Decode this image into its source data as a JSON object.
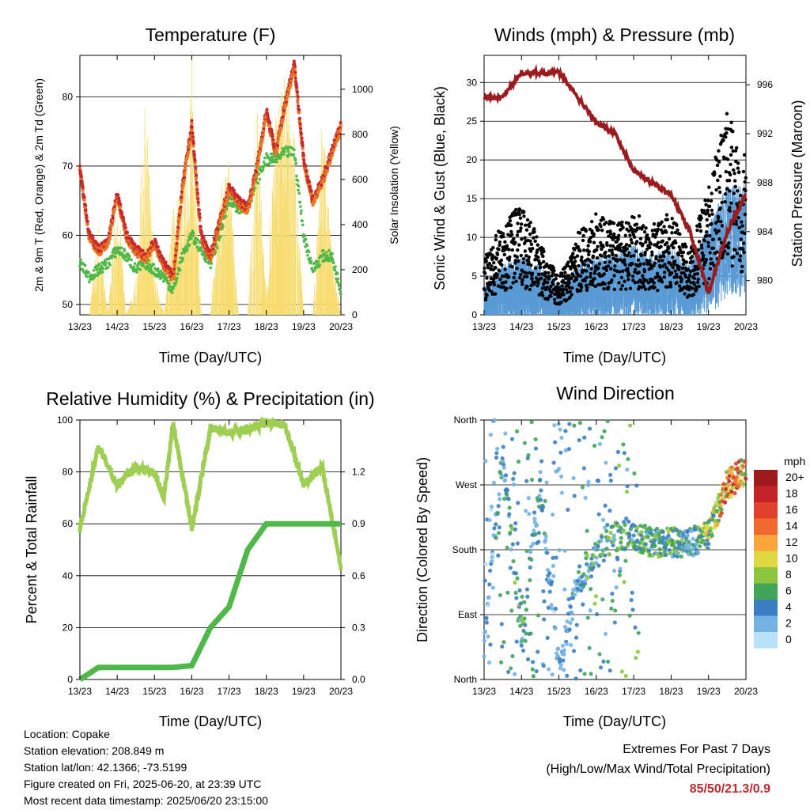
{
  "xtick_labels": [
    "13/23",
    "14/23",
    "15/23",
    "16/23",
    "17/23",
    "18/23",
    "19/23",
    "20/23"
  ],
  "xlabel": "Time (Day/UTC)",
  "panels": {
    "temperature": {
      "title": "Temperature (F)",
      "ylabel_left": "2m & 9m T (Red, Orange) & 2m Td (Green)",
      "ylabel_right": "Solar Insolation (Yellow)",
      "left_ticks": [
        "50",
        "60",
        "70",
        "80"
      ],
      "right_ticks": [
        "0",
        "200",
        "400",
        "600",
        "800",
        "1000"
      ]
    },
    "winds": {
      "title": "Winds (mph) & Pressure (mb)",
      "ylabel_left": "Sonic Wind & Gust (Blue, Black)",
      "ylabel_right": "Station Pressure (Maroon)",
      "left_ticks": [
        "0",
        "5",
        "10",
        "15",
        "20",
        "25",
        "30"
      ],
      "right_ticks": [
        "980",
        "984",
        "988",
        "992",
        "996"
      ]
    },
    "humidity": {
      "title": "Relative Humidity (%) & Precipitation (in)",
      "ylabel_left": "Percent & Total Rainfall",
      "left_ticks": [
        "0",
        "20",
        "40",
        "60",
        "80",
        "100"
      ],
      "right_ticks": [
        "0.0",
        "0.3",
        "0.6",
        "0.9",
        "1.2"
      ]
    },
    "direction": {
      "title": "Wind Direction",
      "ylabel_left": "Direction (Colored By Speed)",
      "left_ticks": [
        "North",
        "East",
        "South",
        "West",
        "North"
      ],
      "legend_title": "mph",
      "legend_labels": [
        "20+",
        "18",
        "16",
        "14",
        "12",
        "10",
        "8",
        "6",
        "4",
        "2",
        "0"
      ],
      "legend_colors": [
        "#9e1a1d",
        "#c42427",
        "#e0402c",
        "#f06a2f",
        "#f9a73b",
        "#e0d840",
        "#8cc63f",
        "#41a55a",
        "#3b7fc2",
        "#74b2e3",
        "#b9e1f8"
      ]
    }
  },
  "info": {
    "location": "Location: Copake",
    "elevation": "Station elevation: 208.849 m",
    "latlon": "Station lat/lon: 42.1366; -73.5199",
    "created": "Figure created on Fri, 2025-06-20, at 23:39 UTC",
    "recent": "Most recent data timestamp: 2025/06/20 23:15:00"
  },
  "extremes": {
    "line1": "Extremes For Past 7 Days",
    "line2": "(High/Low/Max Wind/Total Precipitation)",
    "values": "85/50/21.3/0.9"
  },
  "colors": {
    "temp2m": "#c8282d",
    "temp9m": "#e87a24",
    "dewpoint": "#4fb848",
    "solar": "#f7dc6f",
    "gust": "#000000",
    "wind": "#5a9bd5",
    "pressure": "#9b1c1f",
    "rh": "#9fcf52",
    "rain": "#4fb848"
  },
  "chart_data": [
    {
      "type": "line",
      "title": "Temperature (F)",
      "x": [
        0,
        0.25,
        0.5,
        0.75,
        1,
        1.25,
        1.5,
        1.75,
        2,
        2.25,
        2.5,
        2.75,
        3,
        3.25,
        3.5,
        3.75,
        4,
        4.25,
        4.5,
        4.75,
        5,
        5.25,
        5.5,
        5.75,
        6,
        6.25,
        6.5,
        6.75,
        7
      ],
      "series": [
        {
          "values": [
            70,
            60,
            58,
            59,
            66,
            60,
            58,
            57,
            59,
            56,
            54,
            67,
            76,
            60,
            57,
            62,
            67,
            65,
            64,
            70,
            78,
            72,
            79,
            85,
            71,
            65,
            68,
            72,
            76
          ]
        },
        {
          "values": [
            56,
            54,
            55,
            56,
            58,
            57,
            55,
            56,
            55,
            54,
            52,
            57,
            60,
            58,
            56,
            60,
            65,
            64,
            64,
            68,
            71,
            71,
            72,
            72,
            60,
            55,
            57,
            57,
            52
          ]
        }
      ],
      "solar": {
        "values": [
          0,
          0,
          400,
          0,
          600,
          0,
          150,
          1000,
          200,
          0,
          500,
          600,
          1150,
          0,
          0,
          600,
          700,
          0,
          0,
          950,
          100,
          900,
          1100,
          800,
          0,
          0,
          900,
          300,
          0
        ],
        "ylim": [
          0,
          1150
        ]
      },
      "ylim": [
        48.5,
        86
      ],
      "xlim": [
        0,
        7
      ]
    },
    {
      "type": "line",
      "title": "Winds (mph) & Pressure (mb)",
      "x": [
        0,
        0.5,
        1,
        1.5,
        2,
        2.5,
        3,
        3.5,
        4,
        4.5,
        5,
        5.5,
        6,
        6.5,
        7
      ],
      "series": [
        {
          "values": [
            3,
            5,
            6,
            5,
            3,
            5,
            6,
            6,
            7,
            6,
            7,
            5,
            9,
            13,
            13
          ]
        },
        {
          "values": [
            6,
            10,
            12,
            8,
            4,
            9,
            11,
            10,
            11,
            10,
            11,
            7,
            14,
            22,
            17
          ]
        }
      ],
      "pressure": {
        "values": [
          995,
          995,
          997,
          997,
          997,
          995,
          993,
          992,
          989,
          988,
          987,
          984,
          979,
          984,
          987
        ],
        "ylim": [
          977.2,
          998.4
        ]
      },
      "ylim": [
        0,
        33.5
      ],
      "xlim": [
        0,
        7
      ]
    },
    {
      "type": "line",
      "title": "Relative Humidity (%) & Precipitation (in)",
      "x": [
        0,
        0.5,
        1,
        1.5,
        2,
        2.25,
        2.5,
        3,
        3.5,
        4,
        4.5,
        5,
        5.5,
        6,
        6.5,
        7
      ],
      "series": [
        {
          "values": [
            58,
            90,
            75,
            82,
            80,
            70,
            99,
            58,
            97,
            95,
            96,
            99,
            98,
            75,
            82,
            43
          ]
        },
        {
          "values": [
            0,
            0.07,
            0.07,
            0.07,
            0.07,
            0.07,
            0.07,
            0.08,
            0.3,
            0.42,
            0.75,
            0.9,
            0.9,
            0.9,
            0.9,
            0.9
          ]
        }
      ],
      "ylim": [
        0,
        100
      ],
      "xlim": [
        0,
        7
      ]
    },
    {
      "type": "scatter",
      "title": "Wind Direction",
      "x": [
        0,
        0.5,
        1,
        1.5,
        2,
        2.5,
        3,
        3.5,
        4,
        4.5,
        5,
        5.5,
        6,
        6.5,
        7
      ],
      "series": [
        {
          "values": [
            45,
            315,
            60,
            270,
            20,
            135,
            170,
            200,
            200,
            190,
            190,
            190,
            200,
            270,
            290
          ]
        }
      ],
      "ylim": [
        0,
        360
      ],
      "xlim": [
        0,
        7
      ]
    }
  ]
}
